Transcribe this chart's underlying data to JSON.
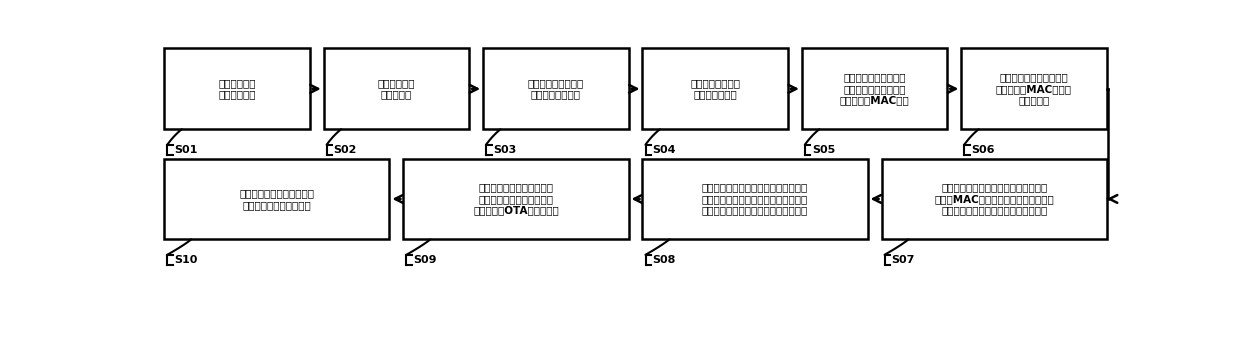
{
  "top_row": [
    {
      "label": "设计产品大类\n的公用版电控",
      "step": "S01"
    },
    {
      "label": "统一烧写公用\n固件至电控",
      "step": "S02"
    },
    {
      "label": "打印含产品品类的身\n份信息识别码标贴",
      "step": "S03"
    },
    {
      "label": "贴任意一个身份识\n别码标贴至家电",
      "step": "S04"
    },
    {
      "label": "扫描贴在家电上的标贴\n及与安装在智能家电上\n的通信模块MAC标贴",
      "step": "S05"
    },
    {
      "label": "上传智能家电的标贴信息\n和通信模块MAC信息至\n服务器绑定",
      "step": "S06"
    }
  ],
  "bottom_row": [
    {
      "label": "用户扫描标贴，通过该身份\n信息使用家电的特定功能",
      "step": "S10"
    },
    {
      "label": "智能家电将通过通信模块获\n取的固件写入电控，完成产\n线版本使用OTA方式的烧写",
      "step": "S09"
    },
    {
      "label": "模块公版程序根据获取到的与机身标贴\n一致的身份信息，向服务器请求该身份\n信息中所包含的品类的最新具体版固件",
      "step": "S08"
    },
    {
      "label": "家电通过通信模块向服务器请求与该通\n信模块MAC绑定的家电身份识别信息并\n反写存入家电，以赋于家电该身份信息",
      "step": "S07"
    }
  ],
  "box_color": "#ffffff",
  "box_edge_color": "#000000",
  "arrow_color": "#000000",
  "text_color": "#000000",
  "step_color": "#000000",
  "background_color": "#ffffff",
  "linewidth": 1.8,
  "fontsize": 7.5,
  "step_fontsize": 8.0
}
